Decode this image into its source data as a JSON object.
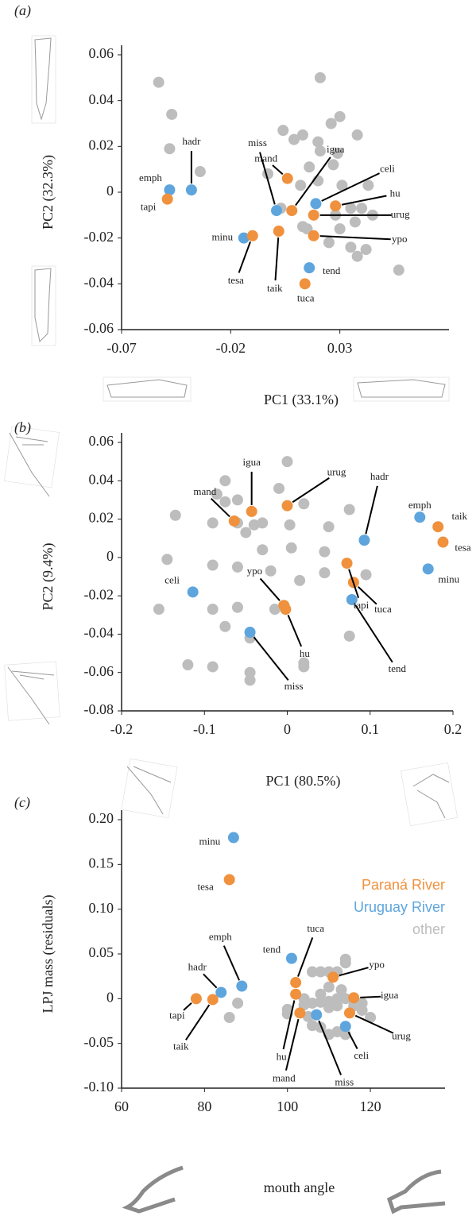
{
  "chart_data": [
    {
      "type": "scatter",
      "panel": "(a)",
      "xlabel": "PC1 (33.1%)",
      "ylabel": "PC2 (32.3%)",
      "xlim": [
        -0.07,
        0.08
      ],
      "ylim": [
        -0.06,
        0.06
      ],
      "xticks": [
        -0.07,
        -0.02,
        0.03
      ],
      "yticks": [
        0.06,
        0.04,
        0.02,
        0,
        -0.02,
        -0.04,
        -0.06
      ],
      "series": [
        {
          "color": "#f0913d",
          "labels": [
            "tapi",
            "tesa",
            "taik",
            "mand",
            "igua",
            "hu",
            "urug",
            "ypo",
            "tuca"
          ],
          "x": [
            -0.049,
            -0.01,
            0.002,
            0.006,
            0.008,
            0.028,
            0.018,
            0.018,
            0.014
          ],
          "y": [
            -0.003,
            -0.019,
            -0.017,
            0.006,
            -0.008,
            -0.006,
            -0.01,
            -0.019,
            -0.04
          ]
        },
        {
          "color": "#5ea5dd",
          "labels": [
            "emph",
            "hadr",
            "minu",
            "miss",
            "celi",
            "tend"
          ],
          "x": [
            -0.048,
            -0.038,
            -0.014,
            0.001,
            0.019,
            0.016
          ],
          "y": [
            0.001,
            0.001,
            -0.02,
            -0.008,
            -0.005,
            -0.033
          ]
        },
        {
          "color": "#bdbdbd",
          "x": [
            -0.053,
            -0.047,
            -0.048,
            -0.034,
            -0.003,
            0.009,
            0.004,
            0.021,
            0.03,
            0.026,
            0.038,
            0.013,
            0.02,
            0.029,
            0.021,
            0.016,
            0.027,
            0.043,
            0.031,
            0.02,
            0.035,
            0.04,
            0.028,
            0.045,
            0.037,
            0.03,
            0.015,
            0.025,
            0.035,
            0.042,
            0.038,
            0.003,
            0.013,
            0.057,
            0.012
          ],
          "y": [
            0.048,
            0.034,
            0.019,
            0.009,
            0.008,
            0.023,
            0.027,
            0.05,
            0.033,
            0.03,
            0.025,
            0.025,
            0.022,
            0.017,
            0.018,
            0.011,
            0.012,
            0.003,
            0.003,
            0.005,
            -0.007,
            -0.007,
            -0.01,
            -0.01,
            -0.013,
            -0.016,
            -0.016,
            -0.022,
            -0.024,
            -0.025,
            -0.028,
            -0.007,
            -0.015,
            -0.034,
            0.003
          ]
        }
      ]
    },
    {
      "type": "scatter",
      "panel": "(b)",
      "xlabel": "PC1 (80.5%)",
      "ylabel": "PC2 (9.4%)",
      "xlim": [
        -0.2,
        0.2
      ],
      "ylim": [
        -0.08,
        0.06
      ],
      "xticks": [
        -0.2,
        -0.1,
        0,
        0.1,
        0.2
      ],
      "yticks": [
        0.06,
        0.04,
        0.02,
        0,
        -0.02,
        -0.04,
        -0.06,
        -0.08
      ],
      "series": [
        {
          "color": "#f0913d",
          "labels": [
            "mand",
            "igua",
            "urug",
            "taik",
            "tesa",
            "tapi",
            "ypo",
            "hu",
            "tuca"
          ],
          "x": [
            -0.064,
            -0.043,
            0.0,
            0.182,
            0.188,
            0.072,
            -0.004,
            -0.002,
            0.08
          ],
          "y": [
            0.019,
            0.024,
            0.027,
            0.016,
            0.008,
            -0.003,
            -0.025,
            -0.027,
            -0.013
          ]
        },
        {
          "color": "#5ea5dd",
          "labels": [
            "hadr",
            "emph",
            "minu",
            "celi",
            "tend",
            "miss"
          ],
          "x": [
            0.093,
            0.16,
            0.17,
            -0.114,
            0.078,
            -0.045
          ],
          "y": [
            0.009,
            0.021,
            -0.006,
            -0.018,
            -0.022,
            -0.039
          ]
        },
        {
          "color": "#bdbdbd",
          "x": [
            -0.135,
            -0.155,
            -0.145,
            -0.09,
            -0.075,
            -0.075,
            -0.085,
            -0.06,
            -0.06,
            -0.05,
            -0.04,
            -0.03,
            -0.03,
            -0.01,
            0.0,
            0.02,
            0.003,
            0.005,
            -0.02,
            0.015,
            -0.09,
            -0.06,
            -0.09,
            -0.075,
            -0.015,
            -0.045,
            -0.045,
            -0.045,
            -0.12,
            -0.09,
            0.02,
            0.02,
            0.045,
            0.05,
            0.075,
            0.095,
            0.075,
            0.045,
            -0.06
          ],
          "y": [
            0.022,
            -0.027,
            -0.001,
            0.018,
            0.04,
            0.029,
            0.033,
            0.03,
            0.018,
            0.013,
            0.017,
            0.018,
            0.004,
            0.036,
            0.05,
            0.028,
            0.017,
            0.005,
            -0.007,
            -0.012,
            -0.004,
            -0.005,
            -0.027,
            -0.036,
            -0.027,
            -0.042,
            -0.06,
            -0.064,
            -0.056,
            -0.057,
            -0.057,
            -0.055,
            -0.008,
            0.016,
            0.025,
            -0.009,
            -0.041,
            0.003,
            -0.026
          ]
        }
      ]
    },
    {
      "type": "scatter",
      "panel": "(c)",
      "xlabel": "mouth angle",
      "ylabel": "LPJ mass (residuals)",
      "xlim": [
        60,
        138
      ],
      "ylim": [
        -0.1,
        0.2
      ],
      "xticks": [
        60,
        80,
        100,
        120
      ],
      "yticks": [
        {
          "value": 0.2,
          "label": "0.20"
        },
        0.15,
        {
          "value": 0.1,
          "label": "0.10"
        },
        0.05,
        0,
        -0.05,
        {
          "value": -0.1,
          "label": "-0.10"
        }
      ],
      "legend": "upper right",
      "series": [
        {
          "name": "Paraná River",
          "color": "#f0913d",
          "labels": [
            "tesa",
            "tapi",
            "taik",
            "tuca",
            "hu",
            "mand",
            "ypo",
            "igua",
            "urug"
          ],
          "x": [
            86,
            78,
            82,
            102,
            102,
            103,
            111,
            116,
            115
          ],
          "y": [
            0.133,
            0,
            -0.001,
            0.018,
            0.005,
            -0.016,
            0.024,
            0.001,
            -0.016
          ]
        },
        {
          "name": "Uruguay River",
          "color": "#5ea5dd",
          "labels": [
            "minu",
            "hadr",
            "emph",
            "tend",
            "miss",
            "celi"
          ],
          "x": [
            87,
            84,
            89,
            101,
            107,
            114
          ],
          "y": [
            0.18,
            0.007,
            0.014,
            0.045,
            -0.018,
            -0.031
          ]
        },
        {
          "name": "other",
          "color": "#bdbdbd",
          "x": [
            100,
            100,
            104,
            106,
            108,
            110,
            112,
            114,
            110,
            113,
            108,
            104,
            106,
            108,
            110,
            112,
            114,
            112,
            110,
            116,
            118,
            120,
            108,
            110,
            114,
            112,
            105,
            88,
            86,
            118,
            106,
            114
          ],
          "y": [
            -0.012,
            -0.017,
            0.0,
            0.03,
            0.03,
            0.03,
            0.03,
            0.04,
            0.013,
            0.01,
            0.005,
            -0.007,
            -0.005,
            -0.004,
            -0.003,
            0.0,
            0.0,
            -0.008,
            -0.01,
            -0.008,
            -0.005,
            -0.021,
            -0.032,
            -0.04,
            -0.04,
            -0.037,
            -0.02,
            -0.005,
            -0.021,
            -0.013,
            -0.03,
            0.044
          ]
        }
      ]
    }
  ]
}
